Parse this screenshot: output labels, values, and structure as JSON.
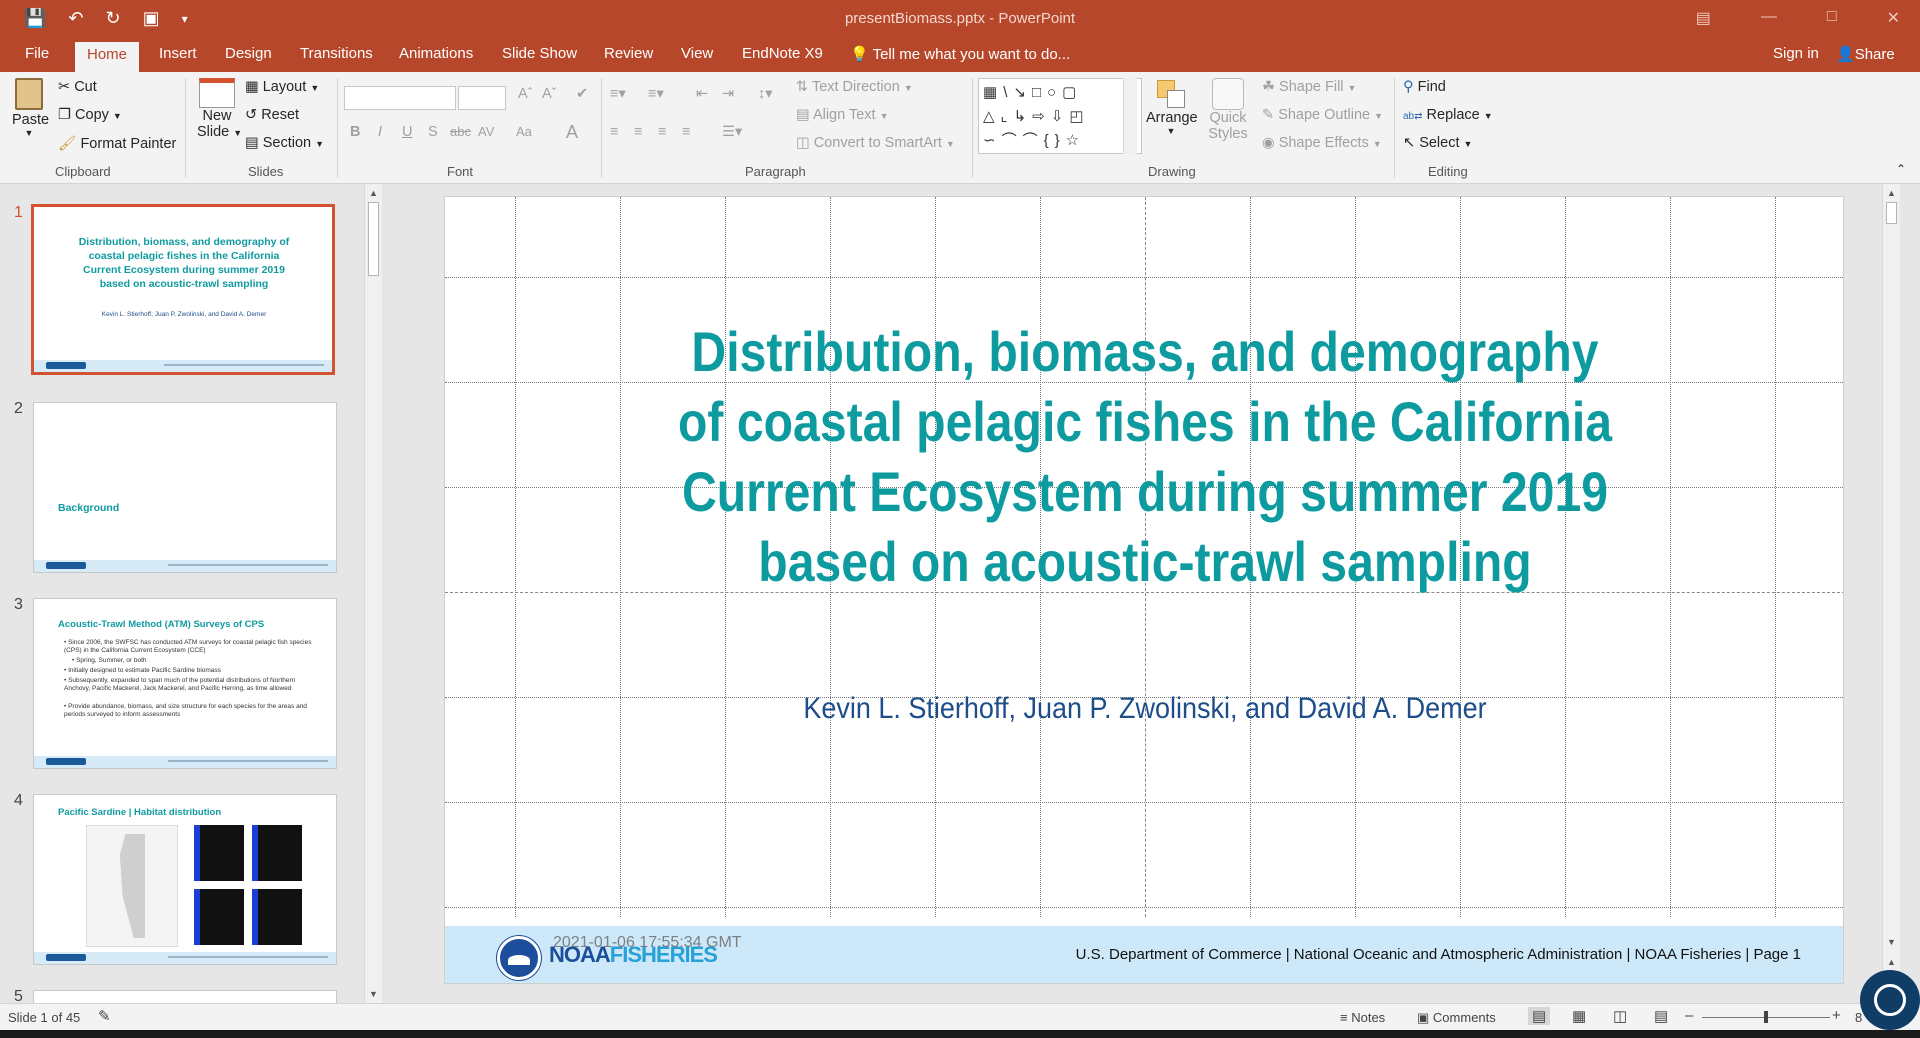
{
  "window": {
    "title": "presentBiomass.pptx - PowerPoint"
  },
  "menu": {
    "tabs": [
      "File",
      "Home",
      "Insert",
      "Design",
      "Transitions",
      "Animations",
      "Slide Show",
      "Review",
      "View",
      "EndNote X9"
    ],
    "active_tab": "Home",
    "tell_me": "Tell me what you want to do...",
    "sign_in": "Sign in",
    "share": "Share"
  },
  "ribbon": {
    "clipboard": {
      "paste": "Paste",
      "cut": "Cut",
      "copy": "Copy",
      "format_painter": "Format Painter",
      "label": "Clipboard"
    },
    "slides": {
      "new_slide_1": "New",
      "new_slide_2": "Slide",
      "layout": "Layout",
      "reset": "Reset",
      "section": "Section",
      "label": "Slides"
    },
    "font": {
      "label": "Font",
      "bold": "B",
      "italic": "I",
      "underline": "U",
      "shadow": "S",
      "strike": "abc",
      "spacing": "AV",
      "case": "Aa",
      "color": "A"
    },
    "paragraph": {
      "label": "Paragraph",
      "text_direction": "Text Direction",
      "align_text": "Align Text",
      "convert_smartart": "Convert to SmartArt"
    },
    "drawing": {
      "label": "Drawing",
      "arrange": "Arrange",
      "quick_styles_1": "Quick",
      "quick_styles_2": "Styles",
      "shape_fill": "Shape Fill",
      "shape_outline": "Shape Outline",
      "shape_effects": "Shape Effects"
    },
    "editing": {
      "label": "Editing",
      "find": "Find",
      "replace": "Replace",
      "select": "Select"
    }
  },
  "thumbnails": [
    {
      "num": "1",
      "title": "Distribution, biomass, and demography of coastal pelagic fishes in the California Current Ecosystem during summer 2019 based on acoustic-trawl sampling",
      "sub": "Kevin L. Stierhoff, Juan P. Zwolinski, and David A. Demer"
    },
    {
      "num": "2",
      "title": "Background"
    },
    {
      "num": "3",
      "title": "Acoustic-Trawl Method (ATM) Surveys of CPS",
      "bullets": [
        "Since 2006, the SWFSC has conducted ATM surveys for coastal pelagic fish species (CPS) in the California Current Ecosystem (CCE)",
        "Spring, Summer, or both",
        "Initially designed to estimate Pacific Sardine biomass",
        "Subsequently, expanded to span much of the potential distributions of Northern Anchovy, Pacific Mackerel, Jack Mackerel, and Pacific Herring, as time allowed",
        "Provide abundance, biomass, and size structure for each species for the areas and periods surveyed to inform assessments"
      ]
    },
    {
      "num": "4",
      "title": "Pacific Sardine | Habitat distribution"
    },
    {
      "num": "5"
    }
  ],
  "slide": {
    "title": "Distribution, biomass, and demography of coastal pelagic fishes in the California Current Ecosystem during summer 2019 based on acoustic-trawl sampling",
    "authors": "Kevin L. Stierhoff, Juan P. Zwolinski, and David A. Demer",
    "timestamp": "2021-01-06 17:55:34 GMT",
    "logo_text_1": "NOAA",
    "logo_text_2": "FISHERIES",
    "footer": "U.S. Department of Commerce  |  National Oceanic and Atmospheric Administration  |  NOAA Fisheries  |  Page 1"
  },
  "status": {
    "slide_counter": "Slide 1 of 45",
    "notes": "Notes",
    "comments": "Comments",
    "zoom": "8"
  },
  "colors": {
    "accent": "#b7472a",
    "title_teal": "#0e9ba0",
    "author_blue": "#1d4e89",
    "footer_band": "#cde9f9"
  }
}
